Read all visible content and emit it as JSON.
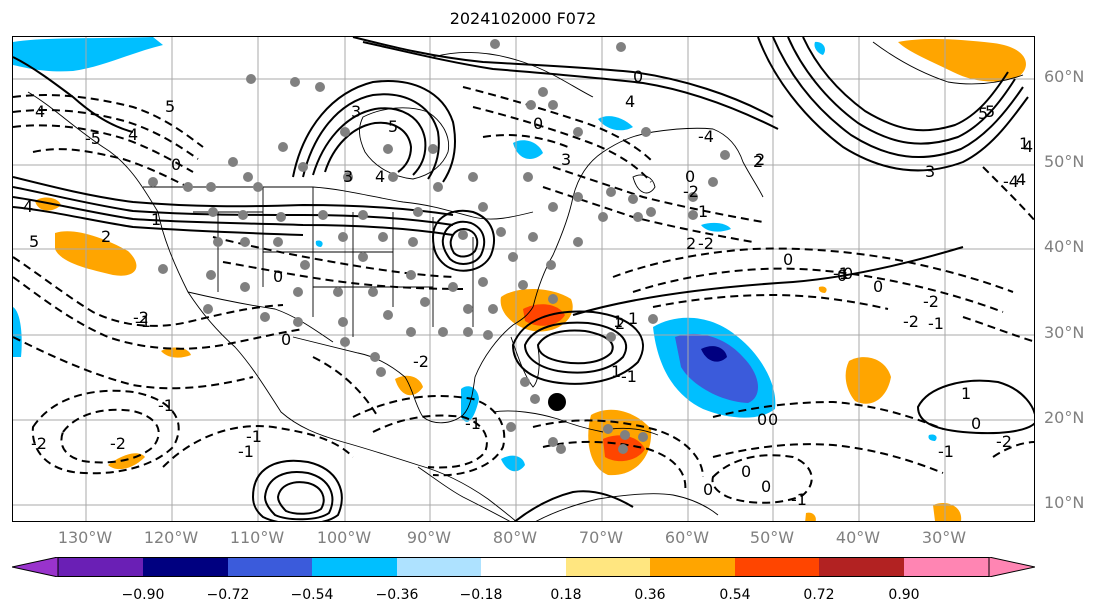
{
  "title": "2024102000 F072",
  "lat_labels": [
    "60°N",
    "50°N",
    "40°N",
    "30°N",
    "20°N",
    "10°N"
  ],
  "lon_labels": [
    "130°W",
    "120°W",
    "110°W",
    "100°W",
    "90°W",
    "80°W",
    "70°W",
    "60°W",
    "50°W",
    "40°W",
    "30°W"
  ],
  "contour_labels": [
    "5",
    "4",
    "0",
    "-5",
    "4",
    "3",
    "5",
    "3",
    "4",
    "2",
    "-4",
    "1",
    "3",
    "-2",
    "0",
    "5",
    "3",
    "-2",
    "0",
    "5",
    "4",
    "-1",
    "-2",
    "1",
    "0",
    "-1",
    "-2",
    "-1",
    "0",
    "0",
    "0",
    "-2",
    "-1",
    "-2",
    "-2",
    "-1",
    "-1",
    "-2",
    "0",
    "1",
    "2",
    "1",
    "-1",
    "0",
    "2",
    "2",
    "1",
    "0",
    "0",
    "-1",
    "0",
    "4",
    "5",
    "1",
    "4",
    "2",
    "4",
    "-4",
    "0",
    "-1",
    "0",
    "1",
    "-2",
    "0",
    "0",
    "-1"
  ],
  "colorbar": {
    "ticks": [
      "−0.90",
      "−0.72",
      "−0.54",
      "−0.36",
      "−0.18",
      "0.18",
      "0.36",
      "0.54",
      "0.72",
      "0.90"
    ],
    "colors": {
      "under": "#9933cc",
      "bins": [
        "#6a1fb5",
        "#000080",
        "#3b5bdb",
        "#00bfff",
        "#aee2ff",
        "#ffffff",
        "#ffe680",
        "#ffa500",
        "#ff4500",
        "#b22222"
      ],
      "over": "#ff85b3"
    }
  },
  "field_colors": {
    "orange": "#ffa500",
    "red_orange": "#ff4500",
    "light_blue": "#00bfff",
    "blue": "#3b5bdb",
    "navy": "#000080"
  }
}
